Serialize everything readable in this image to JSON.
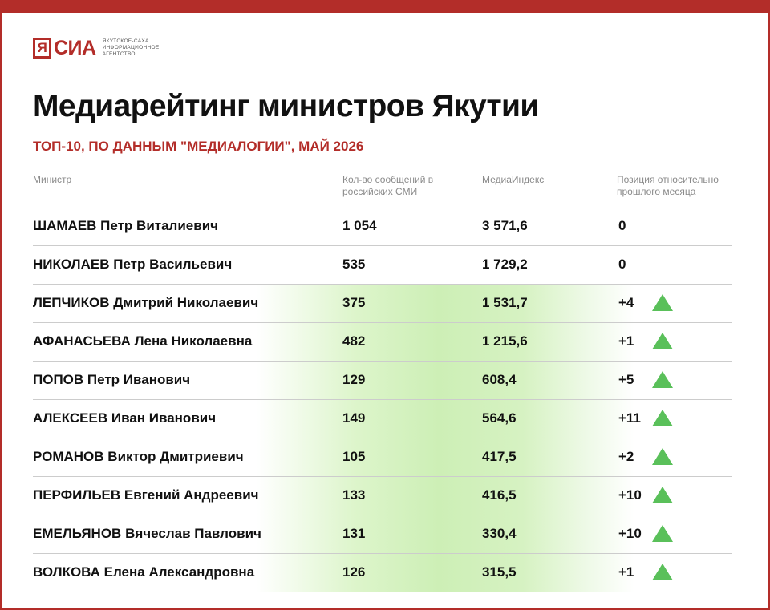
{
  "brand": {
    "logo_text": "ЯСИА",
    "agency_line": "Якутское-Саха информационное агентство"
  },
  "title": "Медиарейтинг министров Якутии",
  "subtitle": "ТОП-10, ПО ДАННЫМ \"МЕДИАЛОГИИ\", МАЙ 2026",
  "columns": {
    "name": "Министр",
    "count": "Кол-во сообщений в российских СМИ",
    "index": "МедиаИндекс",
    "position": "Позиция относительно прошлого месяца"
  },
  "rows": [
    {
      "surname": "ШАМАЕВ",
      "given": "Петр Виталиевич",
      "count": "1 054",
      "index": "3 571,6",
      "change": "0",
      "trend": "none"
    },
    {
      "surname": "НИКОЛАЕВ",
      "given": "Петр Васильевич",
      "count": "535",
      "index": "1 729,2",
      "change": "0",
      "trend": "none"
    },
    {
      "surname": "ЛЕПЧИКОВ",
      "given": "Дмитрий Николаевич",
      "count": "375",
      "index": "1 531,7",
      "change": "+4",
      "trend": "up-arrow-icon"
    },
    {
      "surname": "АФАНАСЬЕВА",
      "given": "Лена Николаевна",
      "count": "482",
      "index": "1 215,6",
      "change": "+1",
      "trend": "up-arrow-icon"
    },
    {
      "surname": "ПОПОВ",
      "given": "Петр Иванович",
      "count": "129",
      "index": "608,4",
      "change": "+5",
      "trend": "up-arrow-icon"
    },
    {
      "surname": "АЛЕКСЕЕВ",
      "given": "Иван Иванович",
      "count": "149",
      "index": "564,6",
      "change": "+11",
      "trend": "up-arrow-icon"
    },
    {
      "surname": "РОМАНОВ",
      "given": "Виктор Дмитриевич",
      "count": "105",
      "index": "417,5",
      "change": "+2",
      "trend": "up-arrow-icon"
    },
    {
      "surname": "ПЕРФИЛЬЕВ",
      "given": "Евгений Андреевич",
      "count": "133",
      "index": "416,5",
      "change": "+10",
      "trend": "up-arrow-icon"
    },
    {
      "surname": "ЕМЕЛЬЯНОВ",
      "given": "Вячеслав Павлович",
      "count": "131",
      "index": "330,4",
      "change": "+10",
      "trend": "up-arrow-icon"
    },
    {
      "surname": "ВОЛКОВА",
      "given": "Елена Александровна",
      "count": "126",
      "index": "315,5",
      "change": "+1",
      "trend": "up-arrow-icon"
    }
  ],
  "colors": {
    "brand_red": "#b32d29",
    "up_arrow": "#5ac05a",
    "row_highlight": "#cdefb6"
  }
}
